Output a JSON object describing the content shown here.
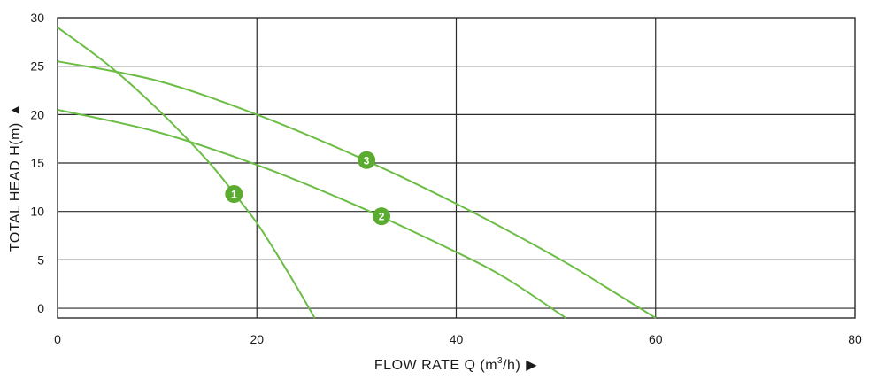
{
  "chart_data": {
    "type": "line",
    "xlabel_main": "FLOW RATE Q (m",
    "xlabel_sup": "3",
    "xlabel_end": "/h)",
    "xlabel_arrow": "▶",
    "ylabel": "TOTAL HEAD H(m)",
    "ylabel_arrow": "▲",
    "xlim": [
      0,
      80
    ],
    "ylim": [
      -1,
      30
    ],
    "x_ticks": [
      0,
      20,
      40,
      60,
      80
    ],
    "y_ticks": [
      0,
      5,
      10,
      15,
      20,
      25,
      30
    ],
    "x_tick_labels": [
      "0",
      "20",
      "40",
      "60",
      "80"
    ],
    "y_tick_labels": [
      "0",
      "5",
      "10",
      "15",
      "20",
      "25",
      "30"
    ],
    "grid": true,
    "colors": {
      "curve": "#6cbd45",
      "badge": "#5aab2f",
      "grid": "#2b2b2b"
    },
    "series": [
      {
        "label": "1",
        "label_point": [
          17.7,
          11.8
        ],
        "points": [
          [
            0,
            29
          ],
          [
            5,
            25.2
          ],
          [
            10,
            20.6
          ],
          [
            15,
            15.3
          ],
          [
            18,
            11.5
          ],
          [
            20,
            8.8
          ],
          [
            22,
            5.6
          ],
          [
            24,
            2.2
          ],
          [
            25.8,
            -1
          ]
        ]
      },
      {
        "label": "2",
        "label_point": [
          32.5,
          9.5
        ],
        "points": [
          [
            0,
            20.5
          ],
          [
            10,
            18.2
          ],
          [
            20,
            14.8
          ],
          [
            30,
            10.6
          ],
          [
            40,
            5.8
          ],
          [
            45,
            3.1
          ],
          [
            51,
            -1
          ]
        ]
      },
      {
        "label": "3",
        "label_point": [
          31.0,
          15.3
        ],
        "points": [
          [
            0,
            25.5
          ],
          [
            10,
            23.5
          ],
          [
            20,
            20.0
          ],
          [
            30,
            15.7
          ],
          [
            40,
            10.8
          ],
          [
            50,
            5.3
          ],
          [
            55,
            2.2
          ],
          [
            60,
            -1
          ]
        ]
      }
    ]
  }
}
